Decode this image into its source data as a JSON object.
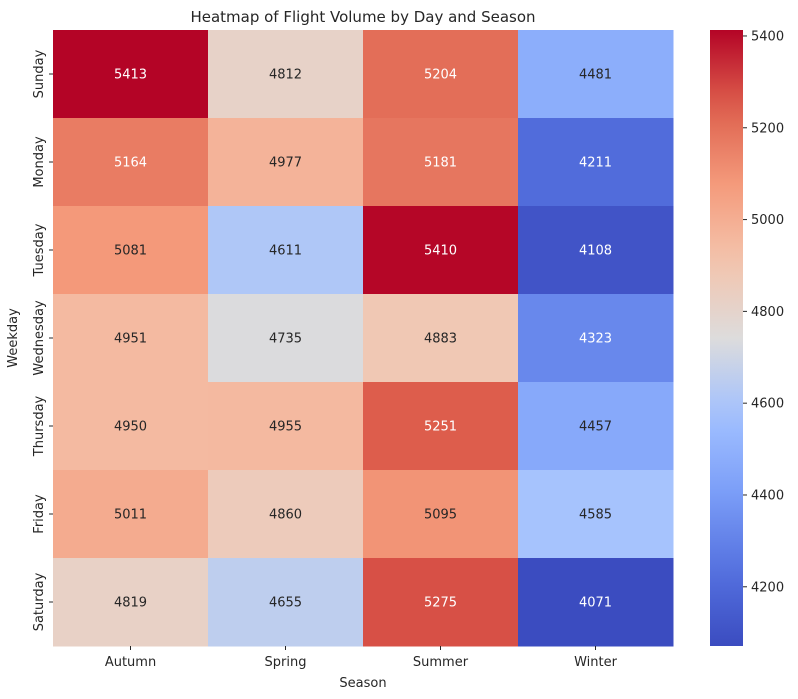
{
  "chart_data": {
    "type": "heatmap",
    "title": "Heatmap of Flight Volume by Day and Season",
    "xlabel": "Season",
    "ylabel": "Weekday",
    "x_categories": [
      "Autumn",
      "Spring",
      "Summer",
      "Winter"
    ],
    "y_categories": [
      "Sunday",
      "Monday",
      "Tuesday",
      "Wednesday",
      "Thursday",
      "Friday",
      "Saturday"
    ],
    "values": [
      [
        5413,
        4812,
        5204,
        4481
      ],
      [
        5164,
        4977,
        5181,
        4211
      ],
      [
        5081,
        4611,
        5410,
        4108
      ],
      [
        4951,
        4735,
        4883,
        4323
      ],
      [
        4950,
        4955,
        5251,
        4457
      ],
      [
        5011,
        4860,
        5095,
        4585
      ],
      [
        4819,
        4655,
        5275,
        4071
      ]
    ],
    "colormap": "coolwarm",
    "color_range": [
      4071,
      5413
    ],
    "colorbar_ticks": [
      4200,
      4400,
      4600,
      4800,
      5000,
      5200,
      5400
    ],
    "annotations": true,
    "grid": false
  }
}
